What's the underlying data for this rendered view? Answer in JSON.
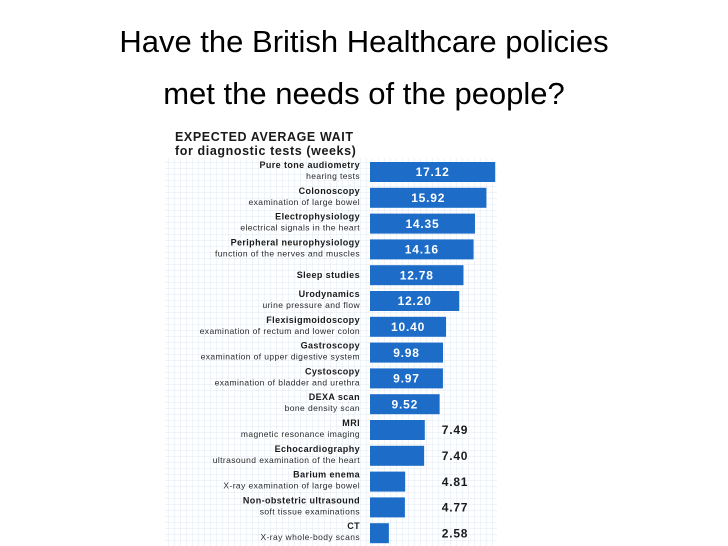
{
  "slide": {
    "title_lines": [
      "Have the British Healthcare policies",
      "met the needs of the people?"
    ]
  },
  "chart_data": {
    "type": "hbar",
    "title": "EXPECTED AVERAGE WAIT",
    "subtitle": "for diagnostic tests (weeks)",
    "color": "#1c6cc8",
    "xlim": [
      0,
      17.5
    ],
    "categories": [
      "Pure tone audiometry",
      "Colonoscopy",
      "Electrophysiology",
      "Peripheral neurophysiology",
      "Sleep studies",
      "Urodynamics",
      "Flexisigmoidoscopy",
      "Gastroscopy",
      "Cystoscopy",
      "DEXA scan",
      "MRI",
      "Echocardiography",
      "Barium enema",
      "Non-obstetric ultrasound",
      "CT"
    ],
    "descriptions": [
      "hearing tests",
      "examination of large bowel",
      "electrical signals in the heart",
      "function of the nerves and muscles",
      null,
      "urine pressure and flow",
      "examination of rectum and lower colon",
      "examination of upper digestive system",
      "examination of bladder and urethra",
      "bone density scan",
      "magnetic resonance imaging",
      "ultrasound examination of the heart",
      "X-ray examination of large bowel",
      "soft tissue examinations",
      "X-ray whole-body scans"
    ],
    "values": [
      17.12,
      15.92,
      14.35,
      14.16,
      12.78,
      12.2,
      10.4,
      9.98,
      9.97,
      9.52,
      7.49,
      7.4,
      4.81,
      4.77,
      2.58
    ],
    "value_labels": [
      "17.12",
      "15.92",
      "14.35",
      "14.16",
      "12.78",
      "12.20",
      "10.40",
      "9.98",
      "9.97",
      "9.52",
      "7.49",
      "7.40",
      "4.81",
      "4.77",
      "2.58"
    ]
  }
}
